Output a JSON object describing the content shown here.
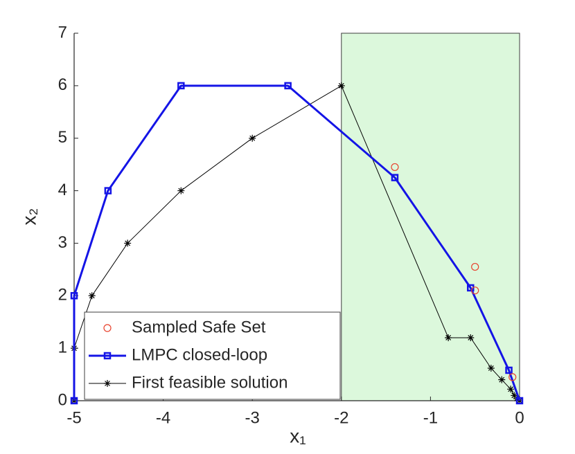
{
  "chart_data": {
    "type": "line",
    "xlabel": "x₁",
    "ylabel": "x₂",
    "xlim": [
      -5,
      0
    ],
    "ylim": [
      0,
      7
    ],
    "xticks": [
      -5,
      -4,
      -3,
      -2,
      -1,
      0
    ],
    "yticks": [
      0,
      1,
      2,
      3,
      4,
      5,
      6,
      7
    ],
    "region": {
      "x": [
        -2,
        0
      ],
      "color": "#dcf8dc"
    },
    "legend": "southwest",
    "series": [
      {
        "name": "Sampled Safe Set",
        "color": "#e8412c",
        "marker": "circle",
        "linestyle": "none",
        "x": [
          -1.4,
          -0.5,
          -0.5,
          -0.08
        ],
        "values": [
          4.45,
          2.55,
          2.1,
          0.45
        ]
      },
      {
        "name": "LMPC closed-loop",
        "color": "#1414e6",
        "marker": "square",
        "linestyle": "solid",
        "x": [
          -5,
          -5,
          -4.62,
          -3.8,
          -2.6,
          -1.4,
          -0.55,
          -0.12,
          0
        ],
        "values": [
          0,
          2,
          4,
          6,
          6,
          4.25,
          2.15,
          0.58,
          0
        ]
      },
      {
        "name": "First feasible solution",
        "color": "#000000",
        "marker": "star",
        "linestyle": "solid",
        "x": [
          -5,
          -5,
          -4.8,
          -4.4,
          -3.8,
          -3,
          -2,
          -0.8,
          -0.55,
          -0.32,
          -0.2,
          -0.1,
          -0.06,
          -0.03,
          0
        ],
        "values": [
          0,
          1,
          2,
          3,
          4,
          5,
          6,
          1.2,
          1.2,
          0.62,
          0.4,
          0.22,
          0.1,
          0.04,
          0
        ]
      }
    ]
  }
}
